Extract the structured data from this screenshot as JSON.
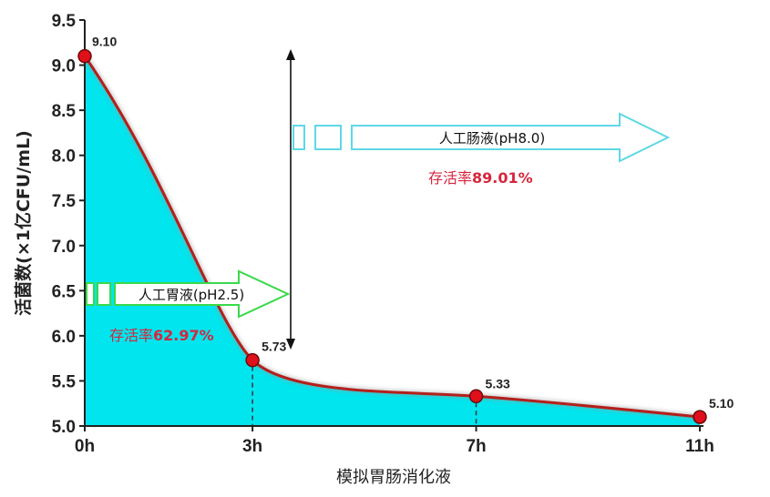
{
  "chart_data": {
    "type": "area",
    "xlabel": "模拟胃肠消化液",
    "ylabel": "活菌数(×1亿CFU/mL)",
    "categories": [
      "0h",
      "3h",
      "7h",
      "11h"
    ],
    "x": [
      0,
      3,
      7,
      11
    ],
    "values": [
      9.1,
      5.73,
      5.33,
      5.1
    ],
    "value_labels": [
      "9.10",
      "5.73",
      "5.33",
      "5.10"
    ],
    "ylim": [
      5.0,
      9.5
    ],
    "yticks": [
      "5.0",
      "5.5",
      "6.0",
      "6.5",
      "7.0",
      "7.5",
      "8.0",
      "8.5",
      "9.0",
      "9.5"
    ],
    "grid": false,
    "colors": {
      "fill": "#00e5ee",
      "line": "#b3201c",
      "marker": "#e0101a",
      "green_arrow": "#39d94a",
      "cyan_arrow": "#5fd8e6",
      "rate_text": "#d7263d"
    },
    "annotations": {
      "gastric": {
        "label": "人工胃液(pH2.5)",
        "rate_prefix": "存活率",
        "rate_value": "62.97%"
      },
      "intestinal": {
        "label": "人工肠液(pH8.0)",
        "rate_prefix": "存活率",
        "rate_value": "89.01%"
      }
    }
  }
}
